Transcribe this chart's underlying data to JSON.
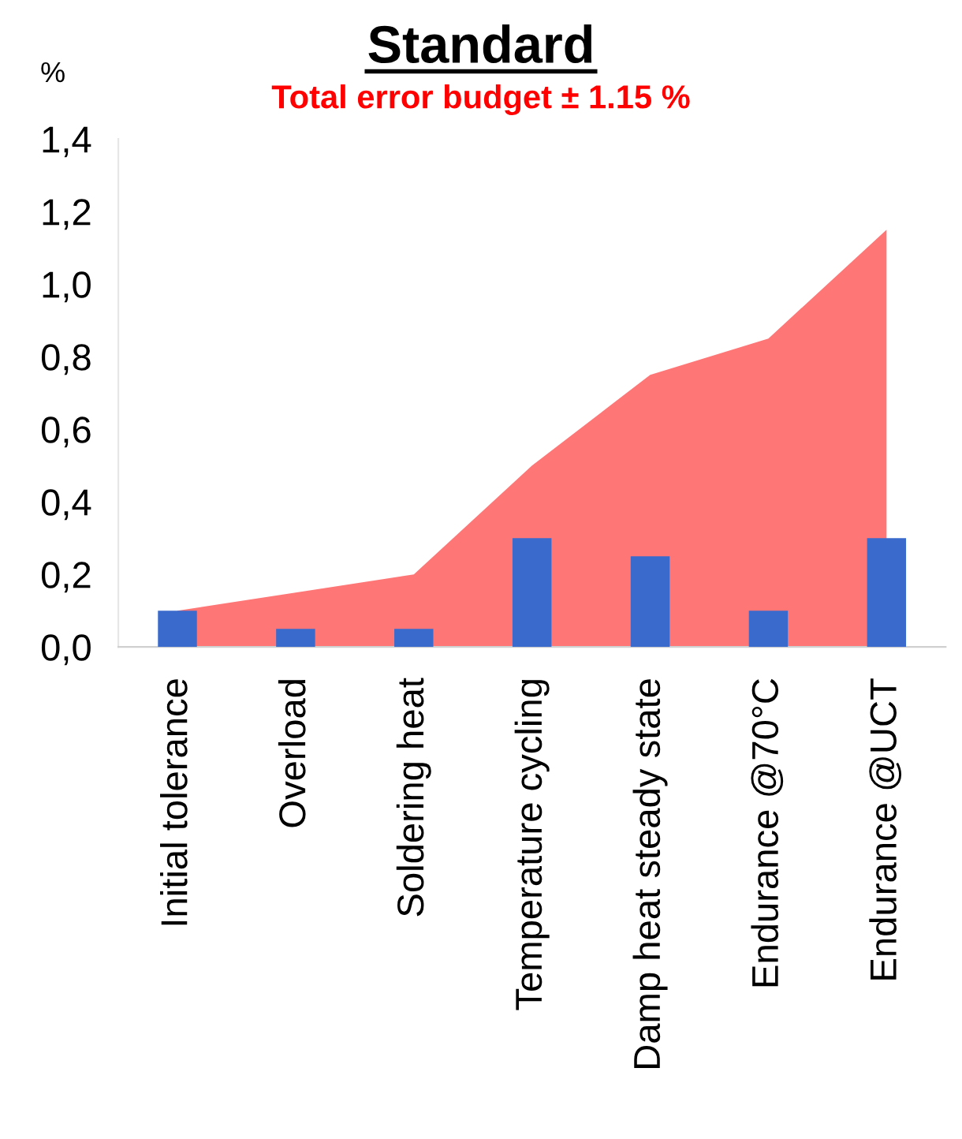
{
  "chart_data": {
    "type": "bar",
    "title": "Standard",
    "subtitle": "Total error budget ± 1.15 %",
    "ylabel": "%",
    "categories": [
      "Initial tolerance",
      "Overload",
      "Soldering heat",
      "Temperature cycling",
      "Damp heat steady state",
      "Endurance @70°C",
      "Endurance @UCT"
    ],
    "series": [
      {
        "type": "area",
        "color": "#ff7677",
        "values": [
          0.1,
          0.15,
          0.2,
          0.5,
          0.75,
          0.85,
          1.15
        ]
      },
      {
        "color": "#3a6bcc",
        "values": [
          0.1,
          0.05,
          0.05,
          0.3,
          0.25,
          0.1,
          0.3
        ]
      }
    ],
    "ylim": [
      0,
      1.4
    ],
    "yticks": [
      {
        "value": 0,
        "label": "0,0"
      },
      {
        "value": 0.2,
        "label": "0,2"
      },
      {
        "value": 0.4,
        "label": "0,4"
      },
      {
        "value": 0.6,
        "label": "0,6"
      },
      {
        "value": 0.8,
        "label": "0,8"
      },
      {
        "value": 1.0,
        "label": "1,0"
      },
      {
        "value": 1.2,
        "label": "1,2"
      },
      {
        "value": 1.4,
        "label": "1,4"
      }
    ],
    "grid": false
  }
}
